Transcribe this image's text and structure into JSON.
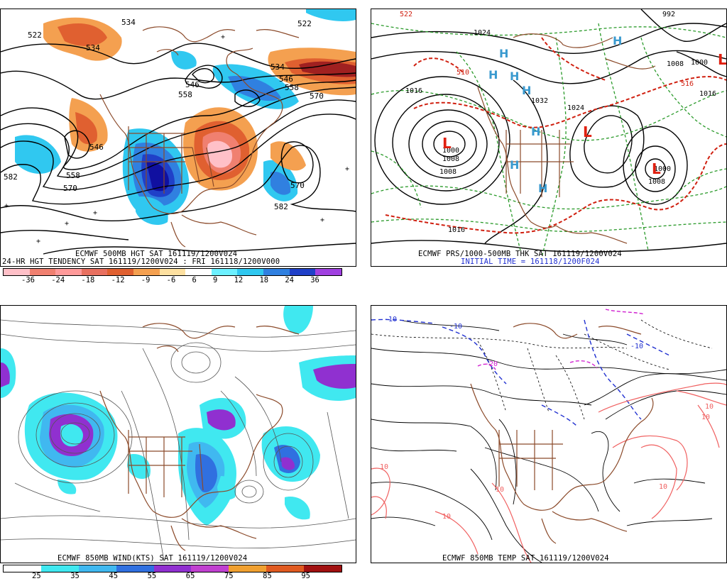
{
  "panels": {
    "top_left": {
      "caption": "ECMWF 500MB HGT SAT 161119/1200V024",
      "caption2": "24-HR HGT TENDENCY SAT 161119/1200V024 : FRI 161118/1200V000",
      "height_labels": [
        "522",
        "534",
        "534",
        "522",
        "546",
        "558",
        "570",
        "534",
        "546",
        "558",
        "570",
        "582",
        "546",
        "558",
        "570",
        "582"
      ],
      "scale_values": [
        "-36",
        "-24",
        "-18",
        "-12",
        "-9",
        "-6",
        "6",
        "9",
        "12",
        "18",
        "24",
        "36"
      ],
      "scale_colors": [
        "#ffc0c8",
        "#f08070",
        "#ff9a9a",
        "#e87060",
        "#e06030",
        "#f4a050",
        "#fde0a0",
        "#ffffff",
        "#6cf0ff",
        "#30c8f0",
        "#3080e0",
        "#2040c8",
        "#a040e0"
      ]
    },
    "top_right": {
      "caption": "ECMWF PRS/1000-500MB THK SAT 161119/1200V024",
      "caption2": "INITIAL TIME = 161118/1200F024",
      "pressure_labels": [
        "1016",
        "1024",
        "1008",
        "1000",
        "1008",
        "1016",
        "1024",
        "1032",
        "992",
        "1008",
        "1000",
        "1016",
        "1008",
        "1000",
        "510",
        "516",
        "522"
      ],
      "highs": [
        "H",
        "H",
        "H",
        "H",
        "H",
        "H",
        "H",
        "H"
      ],
      "lows": [
        "L",
        "L",
        "L",
        "L"
      ]
    },
    "bottom_left": {
      "caption": "ECMWF 850MB WIND(KTS) SAT 161119/1200V024",
      "scale_values": [
        "25",
        "35",
        "45",
        "55",
        "65",
        "75",
        "85",
        "95"
      ],
      "scale_colors": [
        "#ffffff",
        "#40e8f0",
        "#40b8f0",
        "#3070e0",
        "#9030d0",
        "#c040d0",
        "#f0a030",
        "#e05a20",
        "#a01010"
      ]
    },
    "bottom_right": {
      "caption": "ECMWF 850MB TEMP SAT 161119/1200V024",
      "temp_labels": [
        "-10",
        "-10",
        "-20",
        "-10",
        "10",
        "10",
        "10",
        "10",
        "10",
        "10"
      ]
    }
  }
}
